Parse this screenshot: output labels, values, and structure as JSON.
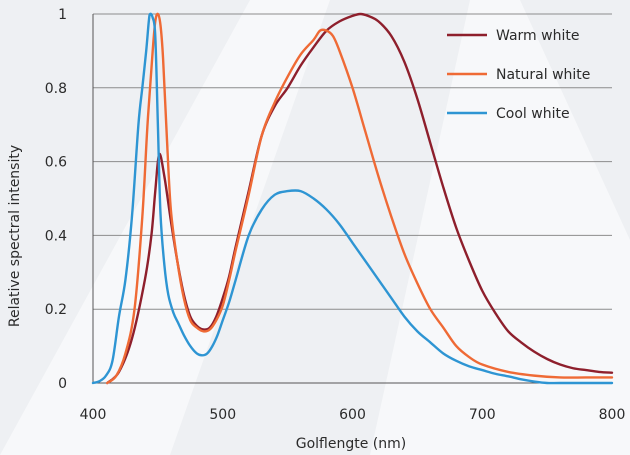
{
  "chart_data": {
    "type": "line",
    "title": "",
    "xlabel": "Golflengte (nm)",
    "ylabel": "Relative spectral intensity",
    "xlim": [
      400,
      800
    ],
    "ylim": [
      0,
      1
    ],
    "x_ticks": [
      "400",
      "500",
      "600",
      "700",
      "800"
    ],
    "y_ticks": [
      "0",
      "0.2",
      "0.4",
      "0.6",
      "0.8",
      "1"
    ],
    "grid": "horizontal",
    "legend_position": "top-right",
    "series": [
      {
        "name": "Warm white",
        "color": "#8e1f2c",
        "points": [
          [
            411,
            0.0
          ],
          [
            420,
            0.03
          ],
          [
            430,
            0.12
          ],
          [
            440,
            0.28
          ],
          [
            445,
            0.4
          ],
          [
            448,
            0.52
          ],
          [
            451,
            0.62
          ],
          [
            455,
            0.56
          ],
          [
            460,
            0.44
          ],
          [
            465,
            0.33
          ],
          [
            470,
            0.24
          ],
          [
            475,
            0.18
          ],
          [
            480,
            0.155
          ],
          [
            485,
            0.145
          ],
          [
            490,
            0.15
          ],
          [
            495,
            0.18
          ],
          [
            500,
            0.23
          ],
          [
            505,
            0.29
          ],
          [
            510,
            0.37
          ],
          [
            520,
            0.52
          ],
          [
            530,
            0.67
          ],
          [
            540,
            0.75
          ],
          [
            550,
            0.8
          ],
          [
            560,
            0.86
          ],
          [
            570,
            0.91
          ],
          [
            580,
            0.955
          ],
          [
            590,
            0.98
          ],
          [
            600,
            0.995
          ],
          [
            606,
            1.0
          ],
          [
            612,
            0.995
          ],
          [
            620,
            0.98
          ],
          [
            630,
            0.94
          ],
          [
            640,
            0.87
          ],
          [
            650,
            0.77
          ],
          [
            660,
            0.65
          ],
          [
            670,
            0.53
          ],
          [
            680,
            0.42
          ],
          [
            690,
            0.33
          ],
          [
            700,
            0.25
          ],
          [
            710,
            0.19
          ],
          [
            720,
            0.14
          ],
          [
            730,
            0.11
          ],
          [
            740,
            0.085
          ],
          [
            750,
            0.065
          ],
          [
            760,
            0.05
          ],
          [
            770,
            0.04
          ],
          [
            780,
            0.035
          ],
          [
            790,
            0.03
          ],
          [
            800,
            0.028
          ]
        ]
      },
      {
        "name": "Natural white",
        "color": "#ef6a35",
        "points": [
          [
            411,
            0.0
          ],
          [
            418,
            0.02
          ],
          [
            425,
            0.08
          ],
          [
            432,
            0.2
          ],
          [
            438,
            0.45
          ],
          [
            442,
            0.7
          ],
          [
            446,
            0.9
          ],
          [
            448,
            0.98
          ],
          [
            450,
            1.0
          ],
          [
            452,
            0.97
          ],
          [
            454,
            0.88
          ],
          [
            457,
            0.66
          ],
          [
            460,
            0.47
          ],
          [
            465,
            0.33
          ],
          [
            470,
            0.23
          ],
          [
            475,
            0.17
          ],
          [
            480,
            0.15
          ],
          [
            485,
            0.14
          ],
          [
            490,
            0.145
          ],
          [
            495,
            0.17
          ],
          [
            500,
            0.21
          ],
          [
            505,
            0.28
          ],
          [
            510,
            0.36
          ],
          [
            520,
            0.51
          ],
          [
            530,
            0.67
          ],
          [
            540,
            0.76
          ],
          [
            550,
            0.83
          ],
          [
            560,
            0.89
          ],
          [
            570,
            0.93
          ],
          [
            575,
            0.955
          ],
          [
            580,
            0.955
          ],
          [
            585,
            0.94
          ],
          [
            590,
            0.9
          ],
          [
            600,
            0.8
          ],
          [
            610,
            0.68
          ],
          [
            620,
            0.56
          ],
          [
            630,
            0.45
          ],
          [
            640,
            0.35
          ],
          [
            650,
            0.27
          ],
          [
            660,
            0.2
          ],
          [
            670,
            0.15
          ],
          [
            680,
            0.1
          ],
          [
            690,
            0.07
          ],
          [
            700,
            0.05
          ],
          [
            720,
            0.03
          ],
          [
            740,
            0.02
          ],
          [
            760,
            0.015
          ],
          [
            780,
            0.015
          ],
          [
            800,
            0.015
          ]
        ]
      },
      {
        "name": "Cool white",
        "color": "#2e95d3",
        "points": [
          [
            400,
            0.0
          ],
          [
            405,
            0.005
          ],
          [
            410,
            0.02
          ],
          [
            415,
            0.06
          ],
          [
            420,
            0.18
          ],
          [
            425,
            0.28
          ],
          [
            430,
            0.45
          ],
          [
            435,
            0.7
          ],
          [
            438,
            0.8
          ],
          [
            441,
            0.9
          ],
          [
            443,
            0.98
          ],
          [
            444,
            1.0
          ],
          [
            446,
            0.99
          ],
          [
            448,
            0.94
          ],
          [
            450,
            0.7
          ],
          [
            452,
            0.46
          ],
          [
            455,
            0.32
          ],
          [
            458,
            0.24
          ],
          [
            462,
            0.19
          ],
          [
            466,
            0.16
          ],
          [
            470,
            0.13
          ],
          [
            475,
            0.1
          ],
          [
            480,
            0.08
          ],
          [
            484,
            0.075
          ],
          [
            488,
            0.08
          ],
          [
            492,
            0.1
          ],
          [
            496,
            0.13
          ],
          [
            500,
            0.17
          ],
          [
            505,
            0.22
          ],
          [
            510,
            0.28
          ],
          [
            520,
            0.4
          ],
          [
            530,
            0.47
          ],
          [
            540,
            0.51
          ],
          [
            550,
            0.52
          ],
          [
            560,
            0.52
          ],
          [
            570,
            0.5
          ],
          [
            580,
            0.47
          ],
          [
            590,
            0.43
          ],
          [
            600,
            0.38
          ],
          [
            610,
            0.33
          ],
          [
            620,
            0.28
          ],
          [
            630,
            0.23
          ],
          [
            640,
            0.18
          ],
          [
            650,
            0.14
          ],
          [
            660,
            0.11
          ],
          [
            670,
            0.08
          ],
          [
            680,
            0.06
          ],
          [
            690,
            0.045
          ],
          [
            700,
            0.035
          ],
          [
            710,
            0.025
          ],
          [
            720,
            0.018
          ],
          [
            730,
            0.01
          ],
          [
            740,
            0.004
          ],
          [
            750,
            0.0
          ],
          [
            760,
            0.0
          ],
          [
            780,
            0.0
          ],
          [
            800,
            0.0
          ]
        ]
      }
    ]
  }
}
